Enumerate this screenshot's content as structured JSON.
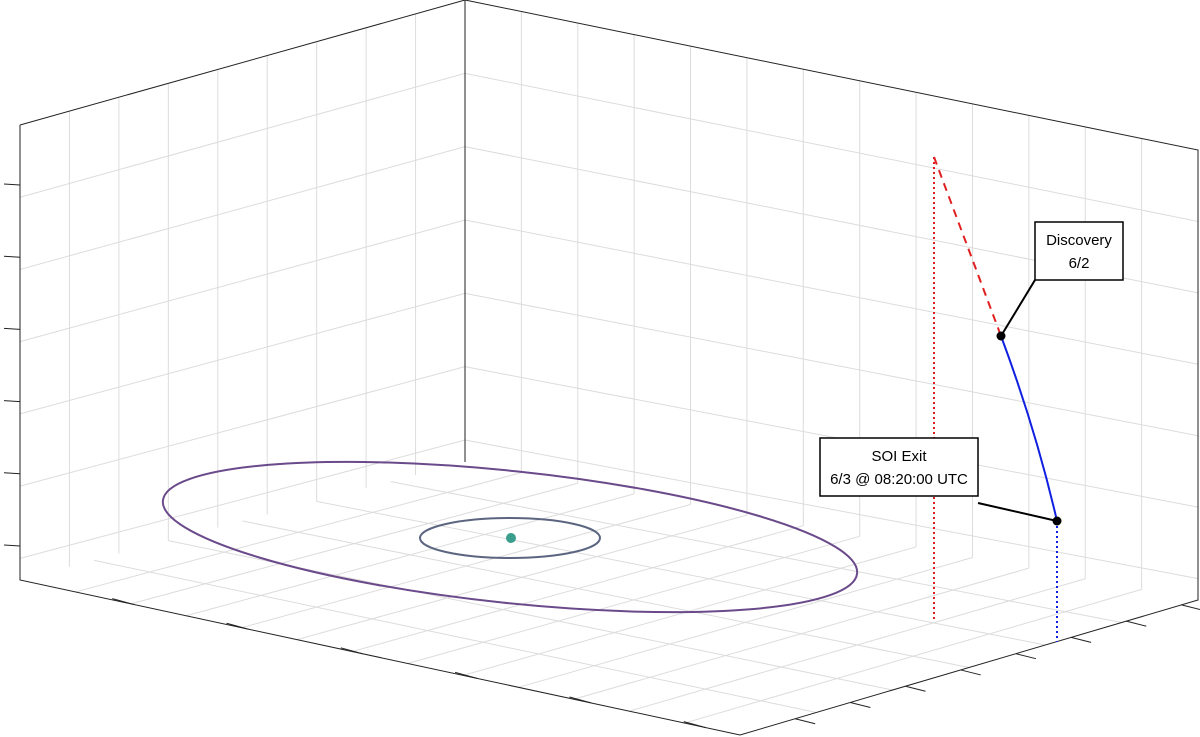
{
  "annotations": [
    {
      "lines": [
        "Discovery",
        "6/2"
      ]
    },
    {
      "lines": [
        "SOI Exit",
        "6/3 @ 08:20:00 UTC"
      ]
    }
  ]
}
